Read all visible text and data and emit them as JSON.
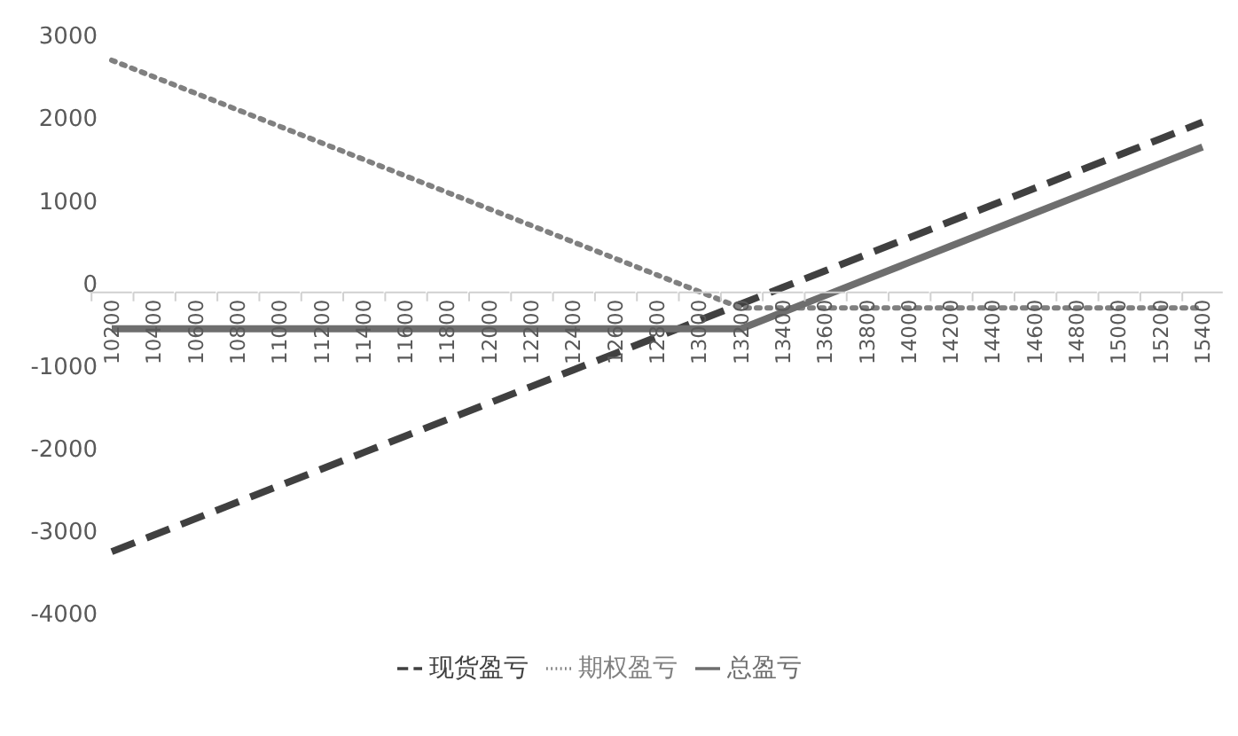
{
  "chart_data": {
    "type": "line",
    "categories": [
      "10200",
      "10400",
      "10600",
      "10800",
      "11000",
      "11200",
      "11400",
      "11600",
      "11800",
      "12000",
      "12200",
      "12400",
      "12600",
      "12800",
      "13000",
      "13200",
      "13400",
      "13600",
      "13800",
      "14000",
      "14200",
      "14400",
      "14600",
      "14800",
      "15000",
      "15200",
      "15400"
    ],
    "series": [
      {
        "name": "现货盈亏",
        "color": "#404040",
        "line_style": "dashed",
        "values": [
          -3250,
          -3050,
          -2850,
          -2650,
          -2450,
          -2250,
          -2050,
          -1850,
          -1650,
          -1450,
          -1250,
          -1050,
          -850,
          -650,
          -450,
          -250,
          -50,
          150,
          350,
          550,
          750,
          950,
          1150,
          1350,
          1550,
          1750,
          1950
        ]
      },
      {
        "name": "期权盈亏",
        "color": "#808080",
        "line_style": "dotted",
        "values": [
          2700,
          2500,
          2300,
          2100,
          1900,
          1700,
          1500,
          1300,
          1100,
          900,
          700,
          500,
          300,
          100,
          -100,
          -300,
          -300,
          -300,
          -300,
          -300,
          -300,
          -300,
          -300,
          -300,
          -300,
          -300,
          -300
        ]
      },
      {
        "name": "总盈亏",
        "color": "#6e6e6e",
        "line_style": "solid",
        "values": [
          -550,
          -550,
          -550,
          -550,
          -550,
          -550,
          -550,
          -550,
          -550,
          -550,
          -550,
          -550,
          -550,
          -550,
          -550,
          -550,
          -350,
          -150,
          50,
          250,
          450,
          650,
          850,
          1050,
          1250,
          1450,
          1650
        ]
      }
    ],
    "ylim": [
      -4000,
      3000
    ],
    "yticks": [
      -4000,
      -3000,
      -2000,
      -1000,
      0,
      1000,
      2000,
      3000
    ],
    "grid": false,
    "legend": "bottom",
    "marker": "none"
  }
}
